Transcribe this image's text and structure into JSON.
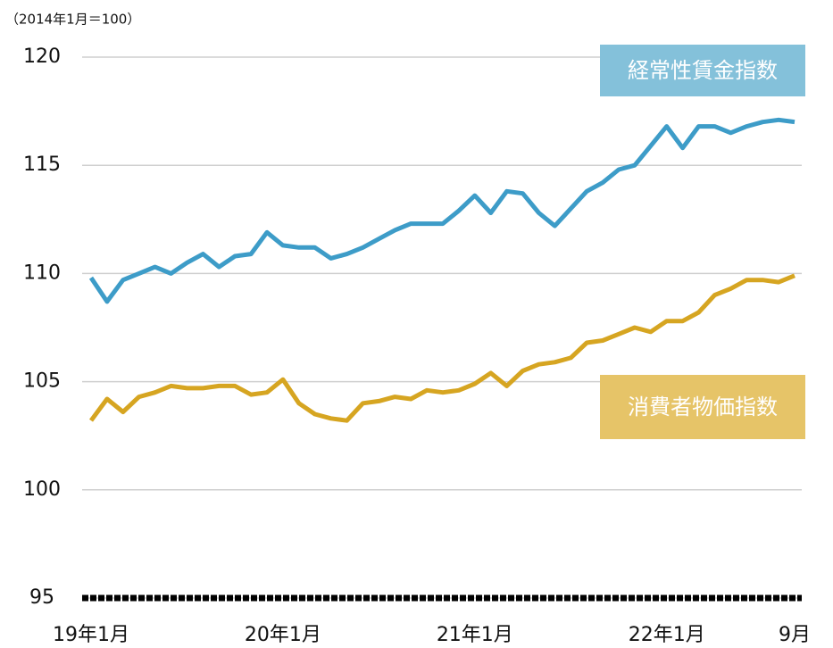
{
  "chart_data": {
    "type": "line",
    "y_label": "（2014年1月＝100）",
    "categories": [
      "19年1月",
      null,
      null,
      null,
      null,
      null,
      null,
      null,
      null,
      null,
      null,
      null,
      "20年1月",
      null,
      null,
      null,
      null,
      null,
      null,
      null,
      null,
      null,
      null,
      null,
      "21年1月",
      null,
      null,
      null,
      null,
      null,
      null,
      null,
      null,
      null,
      null,
      null,
      "22年1月",
      null,
      null,
      null,
      null,
      null,
      null,
      null,
      "9月"
    ],
    "series": [
      {
        "name": "経常性賃金指数",
        "color": "#3d9cc8",
        "box_color": "#84c1da",
        "values": [
          109.8,
          108.7,
          109.7,
          110.0,
          110.3,
          110.0,
          110.5,
          110.9,
          110.3,
          110.8,
          110.9,
          111.9,
          111.3,
          111.2,
          111.2,
          110.7,
          110.9,
          111.2,
          111.6,
          112.0,
          112.3,
          112.3,
          112.3,
          112.9,
          113.6,
          112.8,
          113.8,
          113.7,
          112.8,
          112.2,
          113.0,
          113.8,
          114.2,
          114.8,
          115.0,
          115.9,
          116.8,
          115.8,
          116.8,
          116.8,
          116.5,
          116.8,
          117.0,
          117.1,
          117.0
        ]
      },
      {
        "name": "消費者物価指数",
        "color": "#d6a521",
        "box_color": "#e6c468",
        "values": [
          103.2,
          104.2,
          103.6,
          104.3,
          104.5,
          104.8,
          104.7,
          104.7,
          104.8,
          104.8,
          104.4,
          104.5,
          105.1,
          104.0,
          103.5,
          103.3,
          103.2,
          104.0,
          104.1,
          104.3,
          104.2,
          104.6,
          104.5,
          104.6,
          104.9,
          105.4,
          104.8,
          105.5,
          105.8,
          105.9,
          106.1,
          106.8,
          106.9,
          107.2,
          107.5,
          107.3,
          107.8,
          107.8,
          108.2,
          109.0,
          109.3,
          109.7,
          109.7,
          109.6,
          109.9
        ]
      }
    ],
    "ylim": [
      95,
      120
    ],
    "yticks": [
      95,
      100,
      105,
      110,
      115,
      120
    ],
    "grid": true
  }
}
